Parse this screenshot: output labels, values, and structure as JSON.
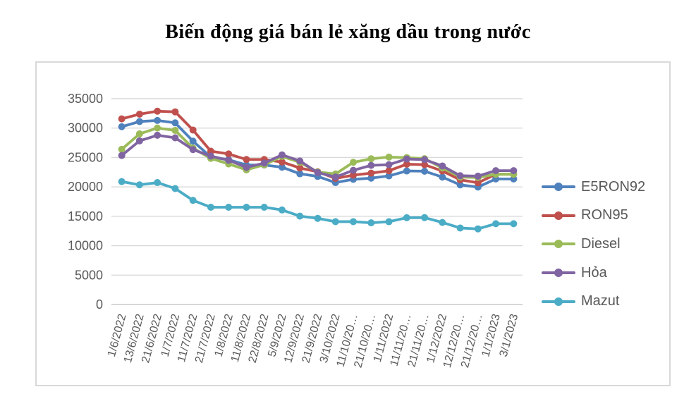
{
  "title": "Biến động giá bán lẻ xăng dầu trong nước",
  "chart_data": {
    "type": "line",
    "title": "Biến động giá bán lẻ xăng dầu trong nước",
    "xlabel": "",
    "ylabel": "",
    "ylim": [
      0,
      35000
    ],
    "ytick_step": 5000,
    "yticks": [
      "0",
      "5000",
      "10000",
      "15000",
      "20000",
      "25000",
      "30000",
      "35000"
    ],
    "grid": true,
    "legend_position": "right",
    "axis_color": "#c9c9c9",
    "gridline_color": "#d9d9d9",
    "label_color": "#595959",
    "categories": [
      "1/6/2022",
      "13/6/2022",
      "21/6/2022",
      "1/7/2022",
      "11/7/2022",
      "21/7/2022",
      "1/8/2022",
      "11/8/2022",
      "22/8/2022",
      "5/9/2022",
      "12/9/2022",
      "21/9/2022",
      "3/10/2022",
      "11/10/20…",
      "21/10/20…",
      "1/11/2022",
      "11/11/20…",
      "21/11/20…",
      "1/12/2022",
      "12/12/20…",
      "21/12/20…",
      "1/1/2023",
      "3/1/2023"
    ],
    "series": [
      {
        "name": "E5RON92",
        "color": "#4F81BD",
        "values": [
          30235,
          31110,
          31300,
          30890,
          27780,
          25070,
          24620,
          23720,
          23720,
          23350,
          22230,
          21780,
          20730,
          21290,
          21490,
          21870,
          22710,
          22670,
          21670,
          20340,
          19970,
          21350,
          21350
        ]
      },
      {
        "name": "RON95",
        "color": "#C0504D",
        "values": [
          31570,
          32370,
          32870,
          32760,
          29670,
          26070,
          25600,
          24660,
          24660,
          24230,
          23210,
          22580,
          21440,
          22000,
          22340,
          22750,
          23860,
          23780,
          22700,
          21200,
          20700,
          22150,
          22150
        ]
      },
      {
        "name": "Diesel",
        "color": "#9BBB59",
        "values": [
          26390,
          29020,
          30010,
          29610,
          26590,
          24850,
          23900,
          22900,
          23750,
          25180,
          24180,
          22530,
          22200,
          24180,
          24780,
          25070,
          24980,
          24800,
          23210,
          21670,
          21600,
          22150,
          22150
        ]
      },
      {
        "name": "Hỏa",
        "color": "#8064A2",
        "values": [
          25340,
          27830,
          28780,
          28350,
          26340,
          25240,
          24530,
          23320,
          24050,
          25440,
          24410,
          22440,
          21680,
          22820,
          23660,
          23780,
          24740,
          24640,
          23560,
          21900,
          21830,
          22760,
          22760
        ]
      },
      {
        "name": "Mazut",
        "color": "#4BACC6",
        "values": [
          20900,
          20350,
          20730,
          19720,
          17710,
          16540,
          16540,
          16540,
          16540,
          16070,
          15030,
          14650,
          14090,
          14090,
          13890,
          14080,
          14760,
          14780,
          13950,
          13010,
          12860,
          13740,
          13740
        ]
      }
    ]
  }
}
